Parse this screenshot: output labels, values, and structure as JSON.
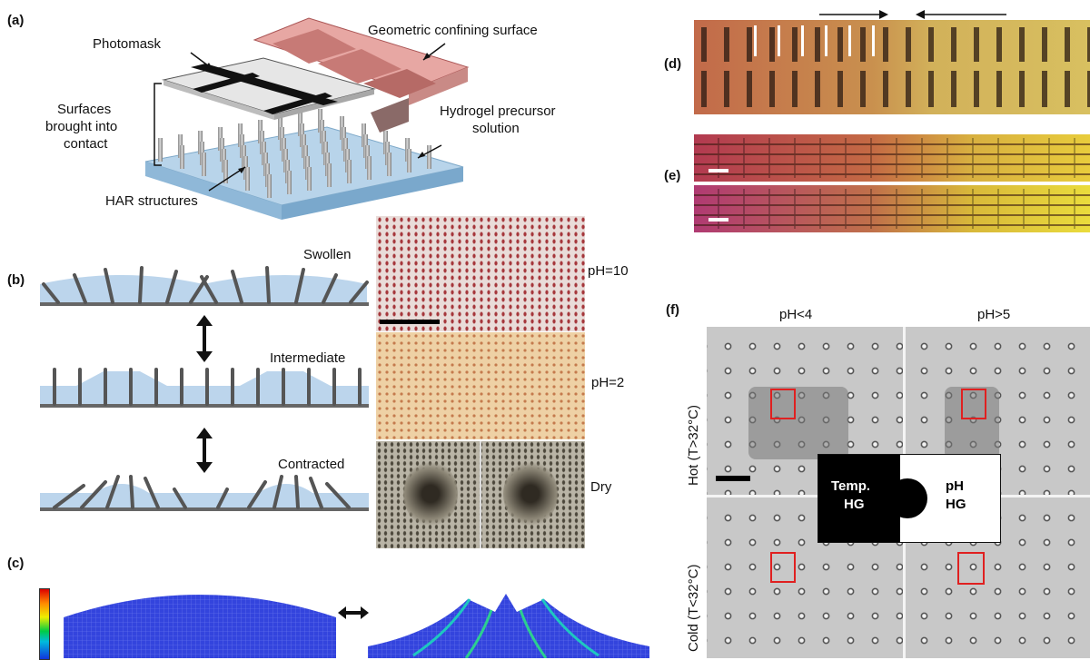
{
  "panel_a": {
    "label": "(a)",
    "photomask": "Photomask",
    "confining_surface": "Geometric confining surface",
    "contact_line1": "Surfaces",
    "contact_line2": "brought into",
    "contact_line3": "contact",
    "precursor_line1": "Hydrogel precursor",
    "precursor_line2": "solution",
    "har": "HAR structures"
  },
  "panel_b": {
    "label": "(b)",
    "swollen": "Swollen",
    "intermediate": "Intermediate",
    "contracted": "Contracted",
    "ph10": "pH=10",
    "ph2": "pH=2",
    "dry": "Dry"
  },
  "panel_c": {
    "label": "(c)"
  },
  "panel_d": {
    "label": "(d)"
  },
  "panel_e": {
    "label": "(e)"
  },
  "panel_f": {
    "label": "(f)",
    "ph_low": "pH<4",
    "ph_high": "pH>5",
    "hot": "Hot (T>32°C)",
    "cold": "Cold (T<32°C)",
    "temp_hg_line1": "Temp.",
    "temp_hg_line2": "HG",
    "ph_hg_line1": "pH",
    "ph_hg_line2": "HG"
  }
}
